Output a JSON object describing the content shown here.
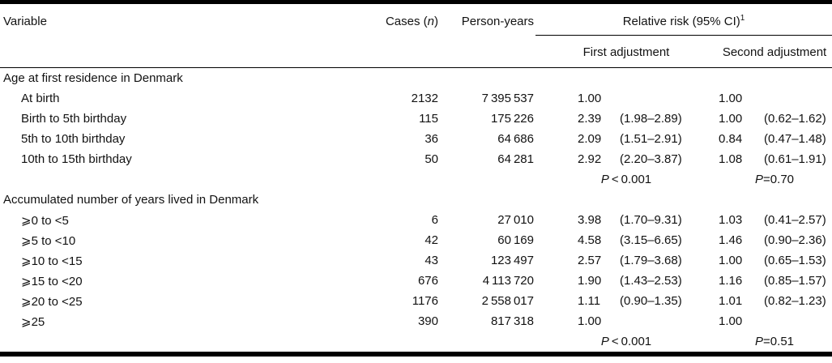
{
  "table": {
    "headers": {
      "variable": "Variable",
      "cases_pre": "Cases (",
      "cases_n": "n",
      "cases_post": ")",
      "person_years": "Person-years",
      "relative_risk": "Relative risk (95% CI)",
      "relative_risk_footnote": "1",
      "first_adjustment": "First adjustment",
      "second_adjustment": "Second adjustment"
    },
    "sections": [
      {
        "title": "Age at first residence in Denmark",
        "rows": [
          {
            "variable": "At birth",
            "cases": "2132",
            "person_years": "7 395 537",
            "rr1": "1.00",
            "ci1": "",
            "rr2": "1.00",
            "ci2": ""
          },
          {
            "variable": "Birth to 5th birthday",
            "cases": "115",
            "person_years": "175 226",
            "rr1": "2.39",
            "ci1": "(1.98–2.89)",
            "rr2": "1.00",
            "ci2": "(0.62–1.62)"
          },
          {
            "variable": "5th to 10th birthday",
            "cases": "36",
            "person_years": "64 686",
            "rr1": "2.09",
            "ci1": "(1.51–2.91)",
            "rr2": "0.84",
            "ci2": "(0.47–1.48)"
          },
          {
            "variable": "10th to 15th birthday",
            "cases": "50",
            "person_years": "64 281",
            "rr1": "2.92",
            "ci1": "(2.20–3.87)",
            "rr2": "1.08",
            "ci2": "(0.61–1.91)"
          }
        ],
        "p_first": {
          "label": "P",
          "value": " < 0.001"
        },
        "p_second": {
          "label": "P",
          "value": "=0.70"
        }
      },
      {
        "title": "Accumulated number of years lived in Denmark",
        "rows": [
          {
            "variable": "⩾0 to <5",
            "cases": "6",
            "person_years": "27 010",
            "rr1": "3.98",
            "ci1": "(1.70–9.31)",
            "rr2": "1.03",
            "ci2": "(0.41–2.57)"
          },
          {
            "variable": "⩾5 to <10",
            "cases": "42",
            "person_years": "60 169",
            "rr1": "4.58",
            "ci1": "(3.15–6.65)",
            "rr2": "1.46",
            "ci2": "(0.90–2.36)"
          },
          {
            "variable": "⩾10 to <15",
            "cases": "43",
            "person_years": "123 497",
            "rr1": "2.57",
            "ci1": "(1.79–3.68)",
            "rr2": "1.00",
            "ci2": "(0.65–1.53)"
          },
          {
            "variable": "⩾15 to <20",
            "cases": "676",
            "person_years": "4 113 720",
            "rr1": "1.90",
            "ci1": "(1.43–2.53)",
            "rr2": "1.16",
            "ci2": "(0.85–1.57)"
          },
          {
            "variable": "⩾20 to <25",
            "cases": "1176",
            "person_years": "2 558 017",
            "rr1": "1.11",
            "ci1": "(0.90–1.35)",
            "rr2": "1.01",
            "ci2": "(0.82–1.23)"
          },
          {
            "variable": "⩾25",
            "cases": "390",
            "person_years": "817 318",
            "rr1": "1.00",
            "ci1": "",
            "rr2": "1.00",
            "ci2": ""
          }
        ],
        "p_first": {
          "label": "P",
          "value": " < 0.001"
        },
        "p_second": {
          "label": "P",
          "value": "=0.51"
        }
      }
    ]
  }
}
